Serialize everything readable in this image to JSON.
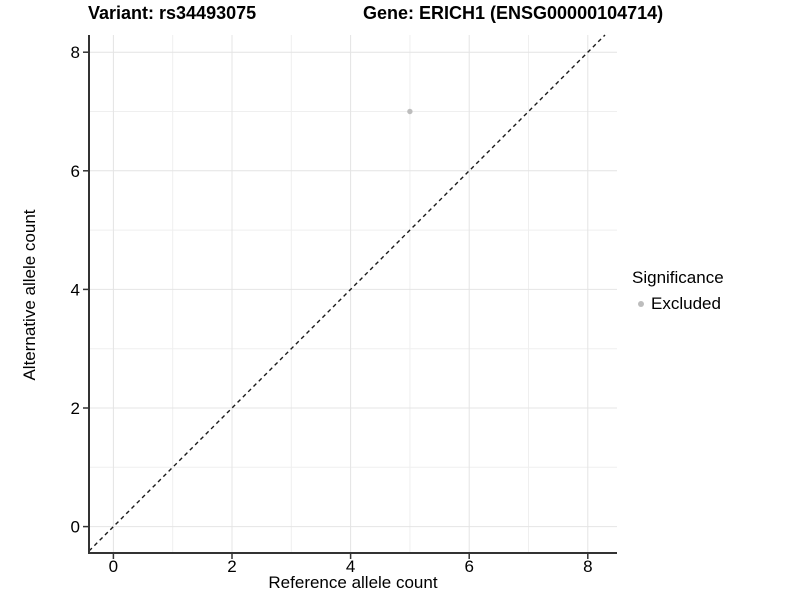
{
  "chart_data": {
    "type": "scatter",
    "title_left": "Variant: rs34493075",
    "title_right": "Gene: ERICH1 (ENSG00000104714)",
    "xlabel": "Reference allele count",
    "ylabel": "Alternative allele count",
    "x_major_ticks": [
      0,
      2,
      4,
      6,
      8
    ],
    "y_major_ticks": [
      0,
      2,
      4,
      6,
      8
    ],
    "x_minor_ticks": [
      1,
      3,
      5,
      7
    ],
    "y_minor_ticks": [
      1,
      3,
      5,
      7
    ],
    "xlim": [
      -0.41,
      8.49
    ],
    "ylim": [
      -0.45,
      8.29
    ],
    "grid": "on",
    "points": [
      {
        "x": 5,
        "y": 7,
        "significance": "Excluded"
      }
    ],
    "identity_line": {
      "type": "y=x",
      "style": "dashed"
    },
    "legend": {
      "position": "right",
      "title": "Significance",
      "items": [
        {
          "label": "Excluded",
          "color": "#bdbdbd"
        }
      ]
    },
    "colors": {
      "point": "#bdbdbd",
      "grid_major": "#e4e4e4",
      "grid_minor": "#efefef",
      "axis_line": "#333333",
      "identity_line": "#1a1a1a",
      "text": "#000000",
      "background": "#ffffff"
    }
  }
}
